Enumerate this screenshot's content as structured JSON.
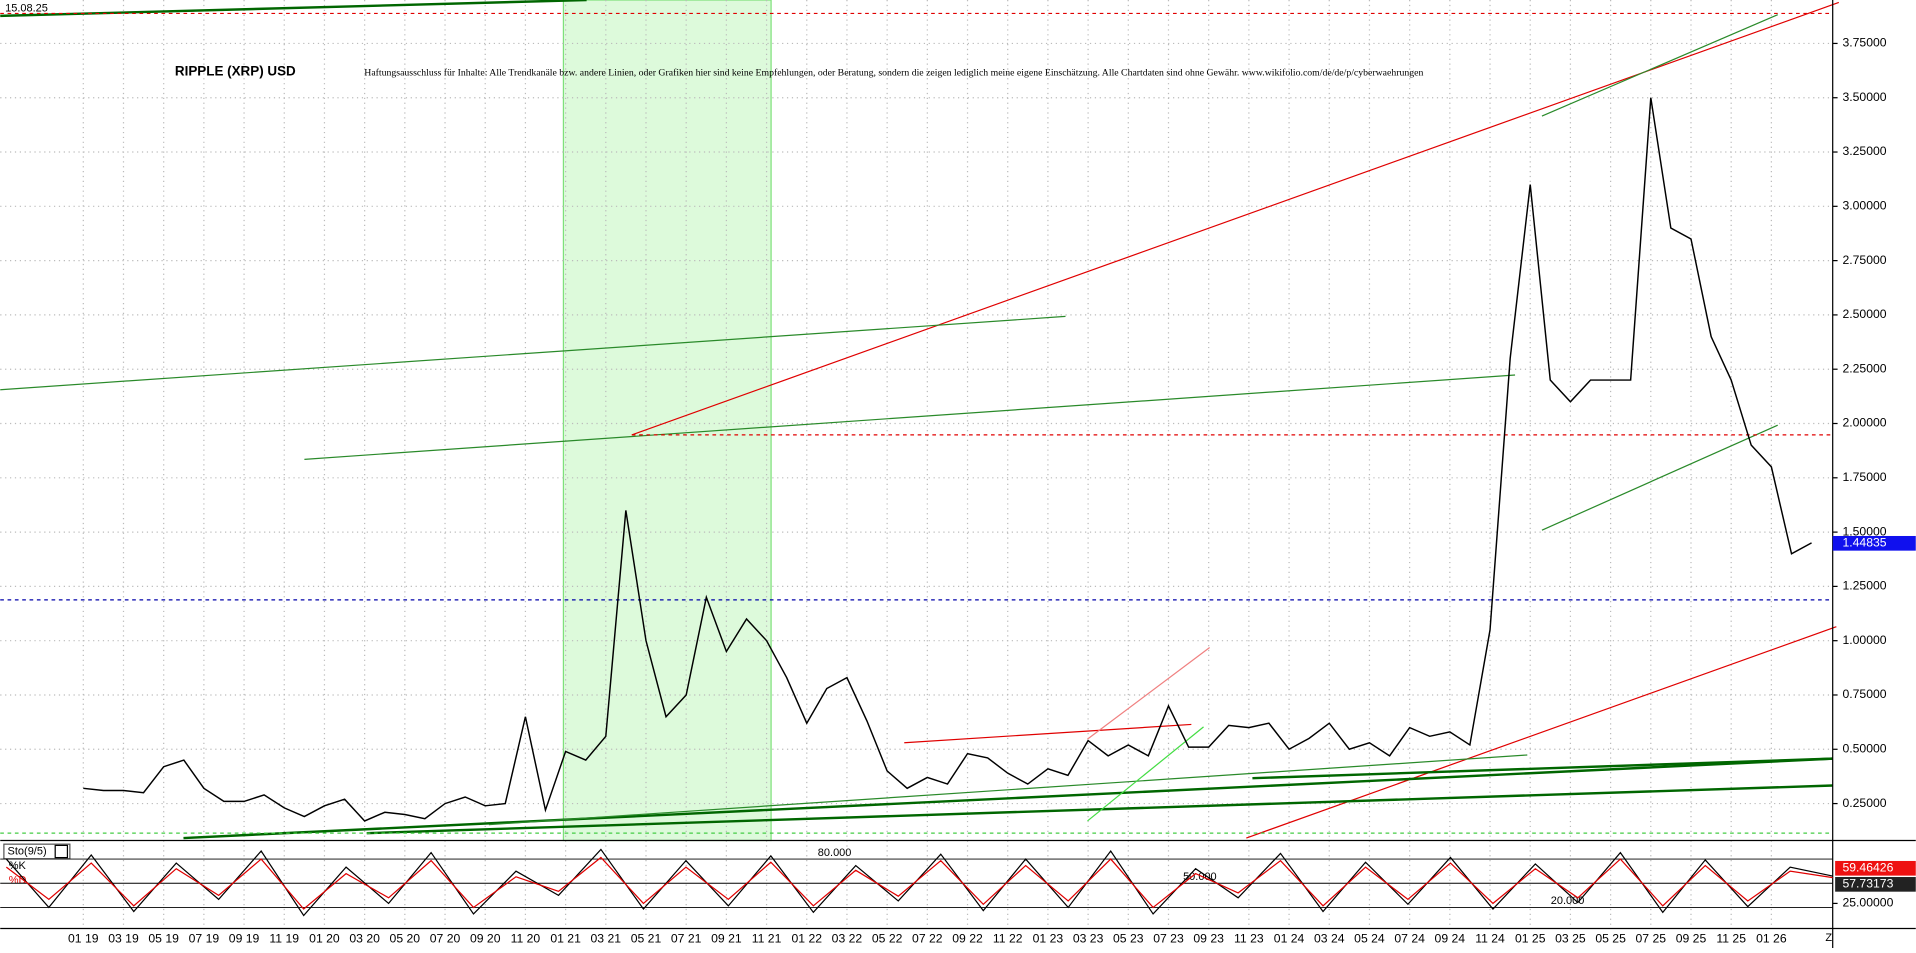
{
  "chart_data": {
    "type": "line",
    "title": "RIPPLE (XRP) USD",
    "subtitle": "Haftungsausschluss für Inhalte: Alle Trendkanäle bzw. andere Linien, oder Grafiken hier sind keine Empfehlungen, oder Beratung, sondern die zeigen lediglich meine eigene Einschätzung. Alle Chartdaten sind ohne Gewähr. www.wikifolio.com/de/de/p/cyberwaehrungen",
    "timestamp": "15.08.25",
    "current_price": {
      "value": 1.44835,
      "label": "1.44835"
    },
    "categories": [
      "01 19",
      null,
      "03 19",
      null,
      "05 19",
      null,
      "07 19",
      null,
      "09 19",
      null,
      "11 19",
      null,
      "01 20",
      null,
      "03 20",
      null,
      "05 20",
      null,
      "07 20",
      null,
      "09 20",
      null,
      "11 20",
      null,
      "01 21",
      null,
      "03 21",
      null,
      "05 21",
      null,
      "07 21",
      null,
      "09 21",
      null,
      "11 21",
      null,
      "01 22",
      null,
      "03 22",
      null,
      "05 22",
      null,
      "07 22",
      null,
      "09 22",
      null,
      "11 22",
      null,
      "01 23",
      null,
      "03 23",
      null,
      "05 23",
      null,
      "07 23",
      null,
      "09 23",
      null,
      "11 23",
      null,
      "01 24",
      null,
      "03 24",
      null,
      "05 24",
      null,
      "07 24",
      null,
      "09 24",
      null,
      "11 24",
      null,
      "01 25",
      null,
      "03 25",
      null,
      "05 25",
      null,
      "07 25",
      null,
      "09 25",
      null,
      "11 25",
      null,
      "01 26",
      null,
      null
    ],
    "series": [
      {
        "name": "XRP",
        "color": "#000000",
        "values": [
          0.32,
          0.31,
          0.31,
          0.3,
          0.42,
          0.45,
          0.32,
          0.26,
          0.26,
          0.29,
          0.23,
          0.19,
          0.24,
          0.27,
          0.17,
          0.21,
          0.2,
          0.18,
          0.25,
          0.28,
          0.24,
          0.25,
          0.65,
          0.22,
          0.49,
          0.45,
          0.56,
          1.6,
          1.0,
          0.65,
          0.75,
          1.2,
          0.95,
          1.1,
          1.0,
          0.83,
          0.62,
          0.78,
          0.83,
          0.63,
          0.4,
          0.32,
          0.37,
          0.34,
          0.48,
          0.46,
          0.39,
          0.34,
          0.41,
          0.38,
          0.54,
          0.47,
          0.52,
          0.47,
          0.7,
          0.51,
          0.51,
          0.61,
          0.6,
          0.62,
          0.5,
          0.55,
          0.62,
          0.5,
          0.53,
          0.47,
          0.6,
          0.56,
          0.58,
          0.52,
          1.05,
          2.3,
          3.1,
          2.2,
          2.1,
          2.2,
          2.2,
          2.2,
          3.5,
          2.9,
          2.85,
          2.4,
          2.2,
          1.9,
          1.8,
          1.4,
          1.45
        ]
      }
    ],
    "ylim": [
      0.08,
      3.95
    ],
    "yticks": [
      {
        "value": 0.25,
        "label": "0.25000"
      },
      {
        "value": 0.5,
        "label": "0.50000"
      },
      {
        "value": 0.75,
        "label": "0.75000"
      },
      {
        "value": 1.0,
        "label": "1.00000"
      },
      {
        "value": 1.25,
        "label": "1.25000"
      },
      {
        "value": 1.5,
        "label": "1.50000"
      },
      {
        "value": 1.75,
        "label": "1.75000"
      },
      {
        "value": 2.0,
        "label": "2.00000"
      },
      {
        "value": 2.25,
        "label": "2.25000"
      },
      {
        "value": 2.5,
        "label": "2.50000"
      },
      {
        "value": 2.75,
        "label": "2.75000"
      },
      {
        "value": 3.0,
        "label": "3.00000"
      },
      {
        "value": 3.25,
        "label": "3.25000"
      },
      {
        "value": 3.5,
        "label": "3.50000"
      },
      {
        "value": 3.75,
        "label": "3.75000"
      }
    ],
    "grid": true,
    "indicator": {
      "title": "Sto(9/5)",
      "ylim": [
        0,
        100
      ],
      "levels": [
        {
          "value": 80,
          "label": "80.000"
        },
        {
          "value": 50,
          "label": "50.000"
        },
        {
          "value": 20,
          "label": "20.000"
        }
      ],
      "yticks": [
        {
          "value": 25,
          "label": "25.00000"
        }
      ],
      "series": [
        {
          "name": "%K",
          "color": "#000000",
          "last": {
            "value": 59.46426,
            "label": "59.46426"
          },
          "values": [
            80,
            20,
            85,
            15,
            75,
            30,
            90,
            10,
            70,
            25,
            88,
            12,
            65,
            35,
            92,
            18,
            78,
            22,
            84,
            14,
            72,
            28,
            86,
            16,
            80,
            20,
            90,
            12,
            68,
            32,
            87,
            15,
            76,
            24,
            82,
            18,
            74,
            26,
            88,
            14,
            79,
            21,
            70,
            59
          ]
        },
        {
          "name": "%D",
          "color": "#e00000",
          "last": {
            "value": 57.73173,
            "label": "57.73173"
          },
          "values": [
            70,
            30,
            75,
            22,
            68,
            35,
            80,
            18,
            62,
            32,
            78,
            20,
            58,
            40,
            82,
            25,
            70,
            30,
            76,
            22,
            66,
            34,
            78,
            24,
            72,
            28,
            80,
            20,
            62,
            38,
            78,
            22,
            70,
            30,
            75,
            25,
            68,
            32,
            80,
            22,
            72,
            28,
            65,
            57
          ]
        }
      ]
    }
  }
}
